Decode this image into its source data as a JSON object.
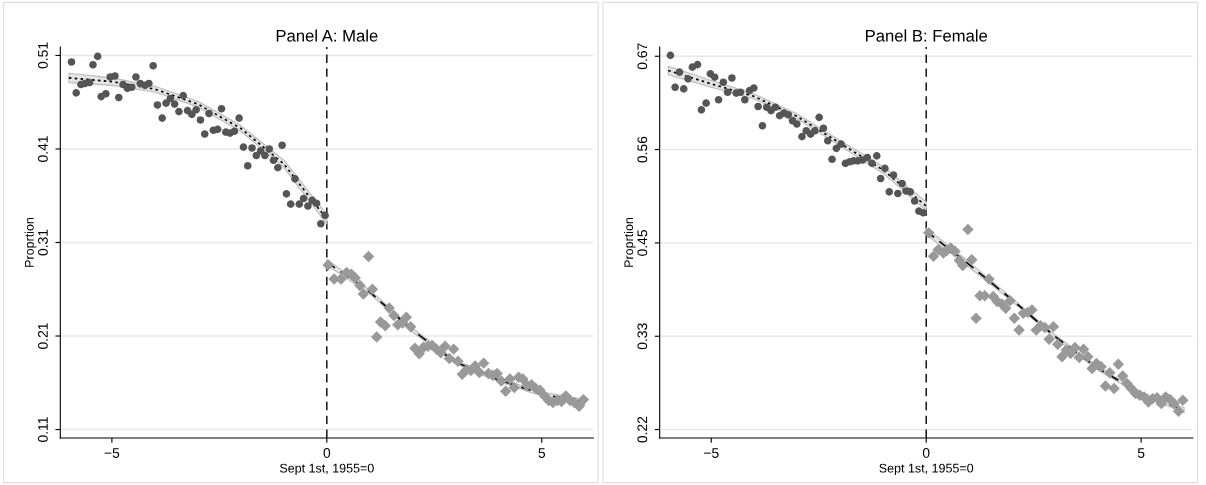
{
  "chart_data": [
    {
      "type": "scatter",
      "title": "Panel A: Male",
      "xlabel": "Sept 1st, 1955=0",
      "ylabel": "Proprtion",
      "xlim": [
        -6.2,
        6.2
      ],
      "xticks": [
        {
          "value": -5,
          "label": "−5"
        },
        0,
        5
      ],
      "ylim": [
        0.101,
        0.519
      ],
      "yticks": [
        0.11,
        0.21,
        0.31,
        0.41,
        0.51
      ],
      "grid": "y",
      "ref_lines": [
        {
          "axis": "x",
          "value": 0,
          "color": "#000000",
          "line_style": "dashed"
        }
      ],
      "series": [
        {
          "marker": "circle",
          "color": "#555555",
          "x": [
            -5.94,
            -5.83,
            -5.72,
            -5.63,
            -5.52,
            -5.44,
            -5.33,
            -5.25,
            -5.14,
            -5.04,
            -4.93,
            -4.84,
            -4.74,
            -4.64,
            -4.54,
            -4.44,
            -4.34,
            -4.23,
            -4.14,
            -4.04,
            -3.94,
            -3.83,
            -3.74,
            -3.64,
            -3.54,
            -3.44,
            -3.34,
            -3.24,
            -3.14,
            -3.04,
            -2.94,
            -2.84,
            -2.74,
            -2.64,
            -2.54,
            -2.45,
            -2.35,
            -2.25,
            -2.15,
            -2.04,
            -1.94,
            -1.84,
            -1.74,
            -1.64,
            -1.54,
            -1.44,
            -1.34,
            -1.24,
            -1.14,
            -1.04,
            -0.94,
            -0.84,
            -0.74,
            -0.64,
            -0.54,
            -0.44,
            -0.34,
            -0.24,
            -0.14,
            -0.04
          ],
          "values": [
            0.503,
            0.47,
            0.479,
            0.48,
            0.481,
            0.5,
            0.509,
            0.466,
            0.469,
            0.487,
            0.488,
            0.465,
            0.479,
            0.475,
            0.476,
            0.487,
            0.48,
            0.478,
            0.48,
            0.499,
            0.457,
            0.443,
            0.459,
            0.464,
            0.458,
            0.45,
            0.467,
            0.451,
            0.447,
            0.452,
            0.441,
            0.426,
            0.448,
            0.43,
            0.431,
            0.453,
            0.428,
            0.427,
            0.429,
            0.443,
            0.412,
            0.392,
            0.411,
            0.403,
            0.408,
            0.403,
            0.41,
            0.398,
            0.39,
            0.414,
            0.362,
            0.351,
            0.378,
            0.351,
            0.357,
            0.349,
            0.355,
            0.352,
            0.33,
            0.339
          ]
        },
        {
          "marker": "diamond",
          "color": "#999999",
          "x": [
            0.03,
            0.17,
            0.33,
            0.46,
            0.57,
            0.66,
            0.77,
            0.85,
            0.97,
            1.06,
            1.16,
            1.25,
            1.36,
            1.45,
            1.56,
            1.65,
            1.76,
            1.85,
            1.95,
            2.05,
            2.15,
            2.25,
            2.35,
            2.45,
            2.55,
            2.65,
            2.75,
            2.85,
            2.95,
            3.05,
            3.15,
            3.25,
            3.35,
            3.45,
            3.55,
            3.65,
            3.76,
            3.86,
            3.96,
            4.06,
            4.16,
            4.26,
            4.36,
            4.46,
            4.56,
            4.66,
            4.76,
            4.86,
            4.96,
            5.06,
            5.16,
            5.26,
            5.36,
            5.46,
            5.56,
            5.66,
            5.76,
            5.87,
            5.97
          ],
          "values": [
            0.286,
            0.271,
            0.271,
            0.278,
            0.276,
            0.272,
            0.264,
            0.255,
            0.295,
            0.26,
            0.209,
            0.225,
            0.221,
            0.24,
            0.232,
            0.222,
            0.224,
            0.23,
            0.22,
            0.197,
            0.191,
            0.198,
            0.199,
            0.2,
            0.196,
            0.192,
            0.199,
            0.186,
            0.196,
            0.183,
            0.169,
            0.174,
            0.173,
            0.178,
            0.171,
            0.181,
            0.17,
            0.168,
            0.17,
            0.162,
            0.151,
            0.164,
            0.155,
            0.166,
            0.164,
            0.157,
            0.158,
            0.154,
            0.152,
            0.146,
            0.141,
            0.139,
            0.141,
            0.14,
            0.146,
            0.141,
            0.139,
            0.135,
            0.142
          ]
        },
        {
          "type": "line",
          "line_style": "dotted",
          "color": "#000000",
          "x": [
            -6,
            -5,
            -4,
            -3,
            -2,
            -1,
            0
          ],
          "values": [
            0.486,
            0.482,
            0.474,
            0.458,
            0.432,
            0.394,
            0.335
          ],
          "lower": [
            0.481,
            0.478,
            0.471,
            0.455,
            0.429,
            0.39,
            0.33
          ],
          "upper": [
            0.491,
            0.486,
            0.477,
            0.461,
            0.435,
            0.398,
            0.34
          ]
        },
        {
          "type": "line",
          "line_style": "dashed",
          "color": "#000000",
          "x": [
            0,
            1,
            2,
            3,
            4,
            5,
            6
          ],
          "values": [
            0.289,
            0.257,
            0.216,
            0.182,
            0.163,
            0.148,
            0.139
          ],
          "lower": [
            0.286,
            0.255,
            0.214,
            0.18,
            0.161,
            0.146,
            0.136
          ],
          "upper": [
            0.292,
            0.259,
            0.218,
            0.184,
            0.165,
            0.15,
            0.142
          ]
        }
      ]
    },
    {
      "type": "scatter",
      "title": "Panel B: Female",
      "xlabel": "Sept 1st, 1955=0",
      "ylabel": "Proprtion",
      "xlim": [
        -6.2,
        6.2
      ],
      "xticks": [
        {
          "value": -5,
          "label": "−5"
        },
        0,
        5
      ],
      "ylim": [
        0.212,
        0.679
      ],
      "yticks": [
        {
          "value": 0.222,
          "label": "0.22"
        },
        {
          "value": 0.3335,
          "label": "0.33"
        },
        {
          "value": 0.445,
          "label": "0.45"
        },
        {
          "value": 0.5565,
          "label": "0.56"
        },
        {
          "value": 0.668,
          "label": "0.67"
        }
      ],
      "grid": "y",
      "ref_lines": [
        {
          "axis": "x",
          "value": 0,
          "color": "#000000",
          "line_style": "dashed"
        }
      ],
      "series": [
        {
          "marker": "circle",
          "color": "#555555",
          "x": [
            -5.95,
            -5.84,
            -5.74,
            -5.64,
            -5.54,
            -5.44,
            -5.32,
            -5.23,
            -5.12,
            -5.02,
            -4.92,
            -4.83,
            -4.72,
            -4.62,
            -4.52,
            -4.42,
            -4.32,
            -4.22,
            -4.11,
            -4.01,
            -3.91,
            -3.81,
            -3.71,
            -3.61,
            -3.51,
            -3.41,
            -3.31,
            -3.21,
            -3.11,
            -3.01,
            -2.89,
            -2.79,
            -2.69,
            -2.59,
            -2.49,
            -2.39,
            -2.29,
            -2.19,
            -2.09,
            -1.98,
            -1.88,
            -1.78,
            -1.69,
            -1.59,
            -1.48,
            -1.37,
            -1.26,
            -1.15,
            -1.06,
            -0.96,
            -0.86,
            -0.76,
            -0.66,
            -0.56,
            -0.47,
            -0.37,
            -0.27,
            -0.17,
            -0.07
          ],
          "values": [
            0.669,
            0.631,
            0.649,
            0.629,
            0.641,
            0.655,
            0.658,
            0.604,
            0.612,
            0.647,
            0.643,
            0.616,
            0.637,
            0.625,
            0.642,
            0.624,
            0.625,
            0.616,
            0.627,
            0.63,
            0.608,
            0.585,
            0.607,
            0.603,
            0.607,
            0.597,
            0.6,
            0.598,
            0.591,
            0.587,
            0.572,
            0.579,
            0.575,
            0.579,
            0.595,
            0.582,
            0.567,
            0.545,
            0.558,
            0.563,
            0.54,
            0.542,
            0.543,
            0.543,
            0.544,
            0.547,
            0.54,
            0.549,
            0.522,
            0.534,
            0.506,
            0.526,
            0.504,
            0.516,
            0.507,
            0.506,
            0.495,
            0.483,
            0.481
          ]
        },
        {
          "marker": "diamond",
          "color": "#999999",
          "x": [
            0.06,
            0.17,
            0.28,
            0.4,
            0.48,
            0.57,
            0.67,
            0.77,
            0.85,
            0.97,
            1.06,
            1.16,
            1.25,
            1.36,
            1.46,
            1.56,
            1.65,
            1.76,
            1.85,
            1.95,
            2.05,
            2.16,
            2.26,
            2.36,
            2.46,
            2.56,
            2.66,
            2.76,
            2.86,
            2.96,
            3.06,
            3.16,
            3.26,
            3.36,
            3.46,
            3.56,
            3.66,
            3.76,
            3.86,
            3.96,
            4.07,
            4.17,
            4.27,
            4.37,
            4.47,
            4.57,
            4.67,
            4.77,
            4.87,
            4.97,
            5.07,
            5.17,
            5.27,
            5.37,
            5.47,
            5.57,
            5.67,
            5.77,
            5.87,
            5.97
          ],
          "values": [
            0.457,
            0.429,
            0.437,
            0.433,
            0.436,
            0.439,
            0.435,
            0.424,
            0.418,
            0.461,
            0.425,
            0.355,
            0.382,
            0.382,
            0.402,
            0.381,
            0.375,
            0.372,
            0.367,
            0.376,
            0.355,
            0.341,
            0.361,
            0.362,
            0.365,
            0.341,
            0.346,
            0.344,
            0.33,
            0.345,
            0.324,
            0.309,
            0.317,
            0.313,
            0.32,
            0.308,
            0.318,
            0.309,
            0.295,
            0.301,
            0.297,
            0.274,
            0.29,
            0.271,
            0.3,
            0.286,
            0.277,
            0.271,
            0.265,
            0.263,
            0.261,
            0.255,
            0.259,
            0.26,
            0.253,
            0.261,
            0.258,
            0.253,
            0.244,
            0.257
          ]
        },
        {
          "type": "line",
          "line_style": "dotted",
          "color": "#000000",
          "x": [
            -6,
            -5,
            -4,
            -3,
            -2,
            -1,
            0
          ],
          "values": [
            0.651,
            0.635,
            0.62,
            0.596,
            0.564,
            0.532,
            0.489
          ],
          "lower": [
            0.646,
            0.631,
            0.617,
            0.593,
            0.561,
            0.528,
            0.484
          ],
          "upper": [
            0.656,
            0.639,
            0.623,
            0.599,
            0.567,
            0.536,
            0.494
          ]
        },
        {
          "type": "line",
          "line_style": "dashed",
          "color": "#000000",
          "x": [
            0,
            1,
            2,
            3,
            4,
            5,
            6
          ],
          "values": [
            0.459,
            0.419,
            0.377,
            0.333,
            0.295,
            0.265,
            0.245
          ],
          "lower": [
            0.455,
            0.416,
            0.375,
            0.331,
            0.293,
            0.263,
            0.242
          ],
          "upper": [
            0.463,
            0.422,
            0.379,
            0.335,
            0.297,
            0.267,
            0.248
          ]
        }
      ]
    }
  ]
}
